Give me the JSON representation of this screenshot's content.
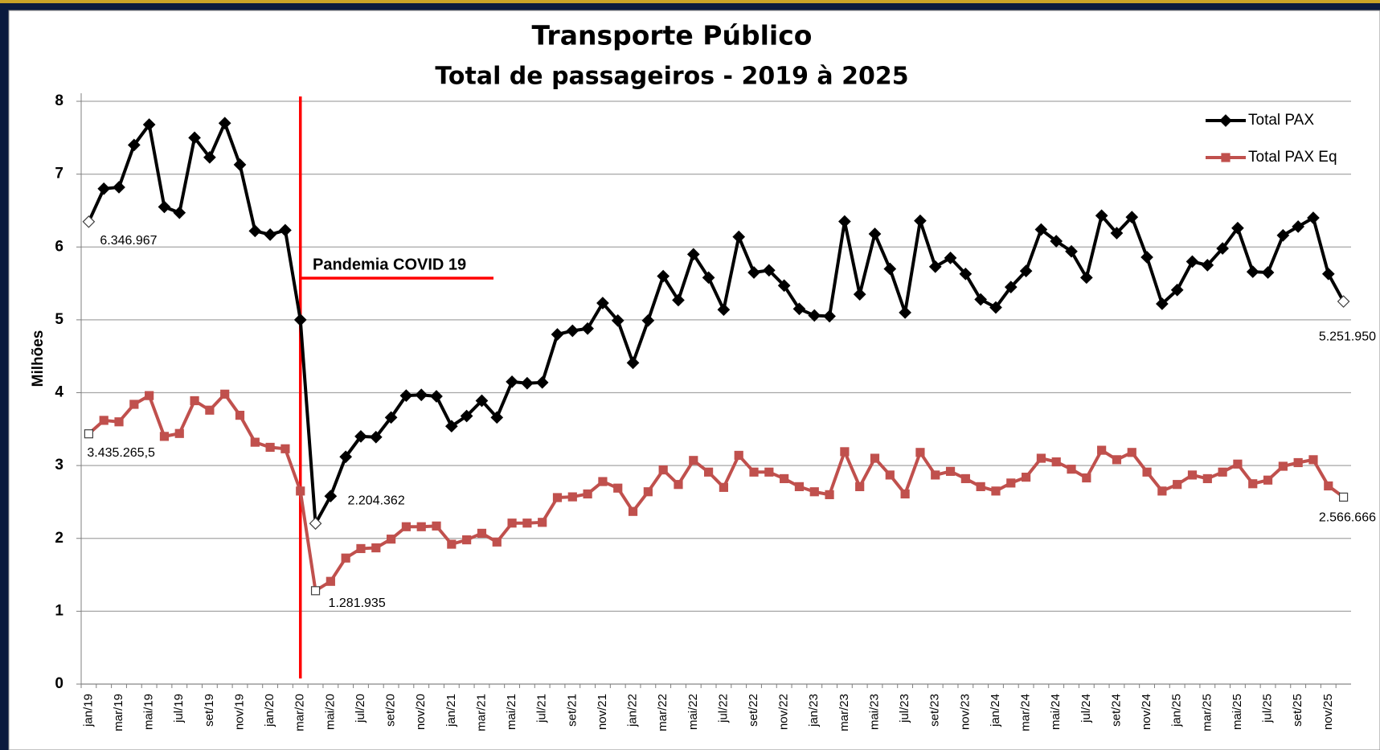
{
  "chart_data": {
    "type": "line",
    "title": "Transporte Público",
    "subtitle": "Total de passageiros - 2019 à 2025",
    "y_label": "Milhões",
    "annotation": "Pandemia COVID 19",
    "legend": "upper right",
    "grid": true,
    "ylim": [
      0,
      8
    ],
    "yticks": [
      0,
      1,
      2,
      3,
      4,
      5,
      6,
      7,
      8
    ],
    "categories": [
      "jan/19",
      null,
      "mar/19",
      null,
      "mai/19",
      null,
      "jul/19",
      null,
      "set/19",
      null,
      "nov/19",
      null,
      "jan/20",
      null,
      "mar/20",
      null,
      "mai/20",
      null,
      "jul/20",
      null,
      "set/20",
      null,
      "nov/20",
      null,
      "jan/21",
      null,
      "mar/21",
      null,
      "mai/21",
      null,
      "jul/21",
      null,
      "set/21",
      null,
      "nov/21",
      null,
      "jan/22",
      null,
      "mar/22",
      null,
      "mai/22",
      null,
      "jul/22",
      null,
      "set/22",
      null,
      "nov/22",
      null,
      "jan/23",
      null,
      "mar/23",
      null,
      "mai/23",
      null,
      "jul/23",
      null,
      "set/23",
      null,
      "nov/23",
      null,
      "jan/24",
      null,
      "mar/24",
      null,
      "mai/24",
      null,
      "jul/24",
      null,
      "set/24",
      null,
      "nov/24",
      null,
      "jan/25",
      null,
      "mar/25",
      null,
      "mai/25",
      null,
      "jul/25",
      null,
      "set/25",
      null,
      "nov/25",
      null
    ],
    "series": [
      {
        "name": "Total PAX",
        "color": "#000000",
        "marker": "diamond",
        "values": [
          6.346967,
          6.8,
          6.82,
          7.4,
          7.68,
          6.55,
          6.47,
          7.5,
          7.23,
          7.7,
          7.13,
          6.22,
          6.17,
          6.23,
          5.0,
          2.204362,
          2.58,
          3.12,
          3.4,
          3.39,
          3.66,
          3.96,
          3.97,
          3.95,
          3.54,
          3.68,
          3.89,
          3.66,
          4.15,
          4.13,
          4.14,
          4.8,
          4.85,
          4.88,
          5.23,
          4.99,
          4.41,
          4.99,
          5.6,
          5.27,
          5.9,
          5.58,
          5.14,
          6.14,
          5.65,
          5.68,
          5.47,
          5.15,
          5.06,
          5.05,
          6.35,
          5.35,
          6.18,
          5.7,
          5.1,
          6.36,
          5.73,
          5.85,
          5.63,
          5.28,
          5.17,
          5.45,
          5.67,
          6.24,
          6.08,
          5.94,
          5.58,
          6.43,
          6.19,
          6.41,
          5.86,
          5.22,
          5.41,
          5.8,
          5.75,
          5.98,
          6.26,
          5.66,
          5.65,
          6.16,
          6.28,
          6.4,
          5.63,
          5.25195
        ],
        "value_labels": [
          "6.346.967",
          null,
          null,
          null,
          null,
          null,
          null,
          null,
          null,
          null,
          null,
          null,
          null,
          null,
          null,
          "2.204.362",
          null,
          null,
          null,
          null,
          null,
          null,
          null,
          null,
          null,
          null,
          null,
          null,
          null,
          null,
          null,
          null,
          null,
          null,
          null,
          null,
          null,
          null,
          null,
          null,
          null,
          null,
          null,
          null,
          null,
          null,
          null,
          null,
          null,
          null,
          null,
          null,
          null,
          null,
          null,
          null,
          null,
          null,
          null,
          null,
          null,
          null,
          null,
          null,
          null,
          null,
          null,
          null,
          null,
          null,
          null,
          null,
          null,
          null,
          null,
          null,
          null,
          null,
          null,
          null,
          null,
          null,
          null,
          "5.251.950"
        ]
      },
      {
        "name": "Total PAX Eq",
        "color": "#c0504d",
        "marker": "square",
        "values": [
          3.4352655,
          3.62,
          3.6,
          3.84,
          3.96,
          3.4,
          3.44,
          3.89,
          3.76,
          3.98,
          3.69,
          3.32,
          3.25,
          3.23,
          2.65,
          1.281935,
          1.41,
          1.73,
          1.86,
          1.87,
          1.99,
          2.16,
          2.16,
          2.17,
          1.92,
          1.98,
          2.07,
          1.95,
          2.21,
          2.21,
          2.22,
          2.56,
          2.57,
          2.61,
          2.78,
          2.69,
          2.37,
          2.64,
          2.94,
          2.74,
          3.07,
          2.91,
          2.7,
          3.14,
          2.91,
          2.91,
          2.82,
          2.71,
          2.64,
          2.6,
          3.19,
          2.71,
          3.1,
          2.87,
          2.61,
          3.18,
          2.87,
          2.92,
          2.82,
          2.71,
          2.65,
          2.76,
          2.84,
          3.1,
          3.05,
          2.95,
          2.83,
          3.21,
          3.08,
          3.18,
          2.91,
          2.65,
          2.74,
          2.87,
          2.82,
          2.91,
          3.02,
          2.75,
          2.8,
          2.99,
          3.04,
          3.08,
          2.72,
          2.566666
        ],
        "value_labels": [
          "3.435.265,5",
          null,
          null,
          null,
          null,
          null,
          null,
          null,
          null,
          null,
          null,
          null,
          null,
          null,
          null,
          "1.281.935",
          null,
          null,
          null,
          null,
          null,
          null,
          null,
          null,
          null,
          null,
          null,
          null,
          null,
          null,
          null,
          null,
          null,
          null,
          null,
          null,
          null,
          null,
          null,
          null,
          null,
          null,
          null,
          null,
          null,
          null,
          null,
          null,
          null,
          null,
          null,
          null,
          null,
          null,
          null,
          null,
          null,
          null,
          null,
          null,
          null,
          null,
          null,
          null,
          null,
          null,
          null,
          null,
          null,
          null,
          null,
          null,
          null,
          null,
          null,
          null,
          null,
          null,
          null,
          null,
          null,
          null,
          null,
          "2.566.666"
        ]
      }
    ]
  }
}
